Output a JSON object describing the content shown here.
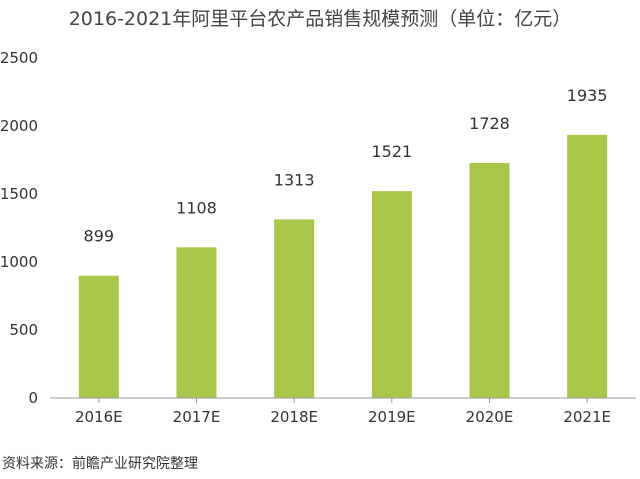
{
  "chart_data": {
    "type": "bar",
    "title": "2016-2021年阿里平台农产品销售规模预测（单位：亿元）",
    "categories": [
      "2016E",
      "2017E",
      "2018E",
      "2019E",
      "2020E",
      "2021E"
    ],
    "values": [
      899,
      1108,
      1313,
      1521,
      1728,
      1935
    ],
    "data_labels": [
      "899",
      "1108",
      "1313",
      "1521",
      "1728",
      "1935"
    ],
    "y_ticks": [
      0,
      500,
      1000,
      1500,
      2000,
      2500
    ],
    "ylim": [
      0,
      2500
    ],
    "xlabel": "",
    "ylabel": "",
    "grid": false,
    "legend": "none",
    "bar_color": "#a8c64a"
  },
  "source": "资料来源：前瞻产业研究院整理"
}
